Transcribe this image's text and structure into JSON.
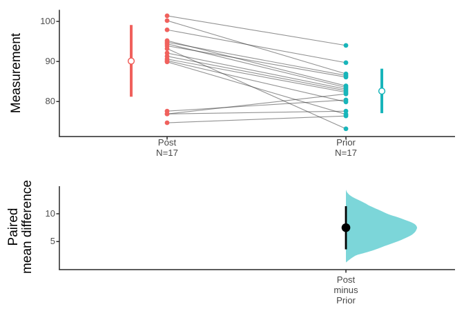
{
  "chart_data": [
    {
      "type": "paired-slopegraph",
      "panel": "top",
      "ylabel": "Measurement",
      "yticks": [
        "100",
        "90",
        "80"
      ],
      "ytick_values": [
        100,
        90,
        80
      ],
      "ylim": [
        71.26,
        102.76
      ],
      "line_color": "rgba(45,45,45,0.52)",
      "groups": [
        {
          "label": "Post",
          "n_label": "N=17",
          "color": "#F0615D",
          "mean": 90.1,
          "sd_low": 81.2,
          "sd_high": 99.1,
          "values": [
            101.4,
            100.2,
            97.9,
            95.2,
            94.8,
            94.4,
            93.9,
            93.2,
            92.1,
            91.3,
            90.6,
            90.2,
            89.9,
            77.6,
            76.9,
            76.9,
            74.7
          ]
        },
        {
          "label": "Prior",
          "n_label": "N=17",
          "color": "#18B5BA",
          "mean": 82.6,
          "sd_low": 77.1,
          "sd_high": 88.2,
          "values": [
            94.0,
            86.9,
            89.7,
            83.9,
            86.5,
            83.5,
            86.1,
            73.2,
            83.1,
            82.7,
            82.3,
            79.9,
            76.8,
            80.4,
            81.9,
            77.6,
            76.4
          ]
        }
      ]
    },
    {
      "type": "halfviolin-bootstrap",
      "panel": "bottom",
      "ylabel_lines": [
        "Paired",
        "mean difference"
      ],
      "yticks": [
        "10",
        "5"
      ],
      "ytick_values": [
        10,
        5
      ],
      "ylim": [
        -0.05,
        14.96
      ],
      "x_label_lines": [
        "Post",
        "minus",
        "Prior"
      ],
      "effect_size": {
        "mean": 7.5,
        "ci_low": 3.6,
        "ci_high": 11.36
      },
      "violin": {
        "fill": "#7CD6D9",
        "profile": [
          [
            14.34,
            0
          ],
          [
            13.9,
            0.015
          ],
          [
            13.4,
            0.05
          ],
          [
            12.9,
            0.11
          ],
          [
            12.4,
            0.19
          ],
          [
            11.9,
            0.27
          ],
          [
            11.4,
            0.34
          ],
          [
            10.6,
            0.48
          ],
          [
            9.9,
            0.6
          ],
          [
            9.4,
            0.72
          ],
          [
            8.9,
            0.83
          ],
          [
            8.4,
            0.93
          ],
          [
            8.0,
            0.98
          ],
          [
            7.5,
            1.0
          ],
          [
            7.0,
            0.985
          ],
          [
            6.7,
            0.97
          ],
          [
            6.2,
            0.925
          ],
          [
            5.7,
            0.85
          ],
          [
            5.2,
            0.76
          ],
          [
            4.7,
            0.655
          ],
          [
            4.2,
            0.545
          ],
          [
            3.6,
            0.42
          ],
          [
            3.1,
            0.3
          ],
          [
            2.6,
            0.16
          ],
          [
            2.2,
            0.1
          ],
          [
            1.8,
            0.055
          ],
          [
            1.5,
            0.025
          ],
          [
            1.24,
            0
          ]
        ]
      }
    }
  ]
}
